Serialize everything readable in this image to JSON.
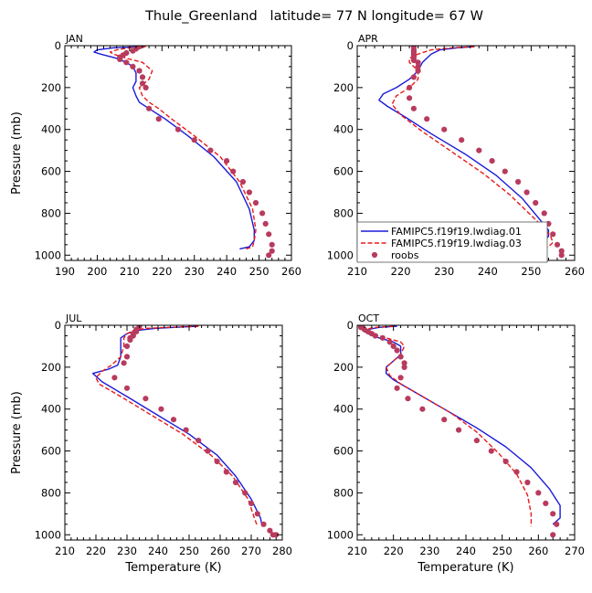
{
  "figure_title": "Thule_Greenland   latitude= 77 N longitude= 67 W",
  "colors": {
    "model1": "#1a1ad8",
    "model2": "#e81a1a",
    "obs": "#b83b5e"
  },
  "legend": {
    "entries": [
      "FAMIPC5.f19f19.lwdiag.01",
      "FAMIPC5.f19f19.lwdiag.03",
      "roobs"
    ],
    "placement": "APR panel, bottom"
  },
  "chart_data": [
    {
      "type": "line",
      "panel_label": "JAN",
      "xlabel": "",
      "ylabel": "Pressure (mb)",
      "xlim": [
        190,
        260
      ],
      "ylim": [
        1025,
        0
      ],
      "xticks": [
        190,
        200,
        210,
        220,
        230,
        240,
        250,
        260
      ],
      "xtick_labels": [
        "190",
        "200",
        "210",
        "220",
        "230",
        "240",
        "250",
        "260"
      ],
      "yticks": [
        0,
        200,
        400,
        600,
        800,
        1000
      ],
      "ytick_labels": [
        "0",
        "200",
        "400",
        "600",
        "800",
        "1000"
      ],
      "series": [
        {
          "name": "FAMIPC5.f19f19.lwdiag.01",
          "style": "solid",
          "x": [
            213,
            205,
            200,
            199,
            201,
            206,
            209,
            211,
            212,
            212,
            211,
            212,
            213,
            216,
            221,
            228,
            236,
            243,
            247,
            248.5,
            248.5,
            247,
            244
          ],
          "y": [
            5,
            10,
            20,
            30,
            40,
            60,
            80,
            100,
            130,
            170,
            200,
            240,
            270,
            300,
            350,
            430,
            530,
            650,
            780,
            880,
            930,
            960,
            970
          ]
        },
        {
          "name": "FAMIPC5.f19f19.lwdiag.03",
          "style": "dashed",
          "x": [
            215,
            210,
            206,
            204,
            205,
            209,
            214,
            217,
            216,
            213,
            214,
            216,
            219,
            223,
            230,
            238,
            244,
            248,
            249,
            248.5,
            248,
            246
          ],
          "y": [
            5,
            10,
            20,
            30,
            40,
            60,
            80,
            120,
            160,
            200,
            240,
            270,
            300,
            350,
            430,
            530,
            650,
            780,
            880,
            930,
            960,
            970
          ]
        },
        {
          "name": "roobs",
          "style": "markers",
          "x": [
            213,
            212,
            211,
            209,
            208,
            207,
            207,
            209,
            211,
            213,
            214,
            214,
            215,
            216,
            219,
            225,
            230,
            235,
            240,
            242,
            245,
            247,
            249,
            251,
            252,
            253,
            254,
            254,
            253
          ],
          "y": [
            5,
            15,
            25,
            35,
            45,
            55,
            65,
            80,
            100,
            120,
            150,
            180,
            200,
            300,
            350,
            400,
            450,
            500,
            550,
            600,
            650,
            700,
            750,
            800,
            850,
            900,
            950,
            980,
            1000
          ]
        }
      ]
    },
    {
      "type": "line",
      "panel_label": "APR",
      "xlabel": "",
      "ylabel": "",
      "xlim": [
        210,
        260
      ],
      "ylim": [
        1025,
        0
      ],
      "xticks": [
        210,
        220,
        230,
        240,
        250,
        260
      ],
      "xtick_labels": [
        "210",
        "220",
        "230",
        "240",
        "250",
        "260"
      ],
      "yticks": [
        0,
        200,
        400,
        600,
        800,
        1000
      ],
      "ytick_labels": [
        "0",
        "200",
        "400",
        "600",
        "800",
        "1000"
      ],
      "series": [
        {
          "name": "FAMIPC5.f19f19.lwdiag.01",
          "style": "solid",
          "x": [
            237,
            233,
            229,
            227,
            225,
            224,
            222,
            219,
            216,
            215,
            217,
            221,
            227,
            235,
            242,
            248,
            252,
            254,
            254,
            253,
            251,
            249
          ],
          "y": [
            5,
            10,
            20,
            40,
            80,
            120,
            160,
            200,
            230,
            260,
            290,
            340,
            420,
            520,
            620,
            730,
            830,
            880,
            910,
            930,
            950,
            960
          ]
        },
        {
          "name": "FAMIPC5.f19f19.lwdiag.03",
          "style": "dashed",
          "x": [
            237,
            232,
            227,
            224,
            222,
            222,
            224,
            224,
            222,
            219,
            218,
            220,
            225,
            232,
            239,
            245,
            250,
            253,
            254.5,
            255,
            254,
            252
          ],
          "y": [
            5,
            10,
            20,
            40,
            60,
            80,
            120,
            160,
            200,
            240,
            280,
            330,
            410,
            510,
            610,
            710,
            810,
            870,
            910,
            940,
            960,
            970
          ]
        },
        {
          "name": "roobs",
          "style": "markers",
          "x": [
            223,
            223,
            223,
            223,
            223,
            223,
            223,
            224,
            224,
            224,
            223,
            222,
            222,
            223,
            226,
            230,
            234,
            238,
            241,
            244,
            247,
            249,
            251,
            253,
            254,
            255,
            256,
            257,
            257
          ],
          "y": [
            5,
            20,
            30,
            40,
            50,
            60,
            70,
            80,
            100,
            120,
            150,
            200,
            250,
            300,
            350,
            400,
            450,
            500,
            550,
            600,
            650,
            700,
            750,
            800,
            850,
            900,
            950,
            980,
            1000
          ]
        }
      ]
    },
    {
      "type": "line",
      "panel_label": "JUL",
      "xlabel": "Temperature (K)",
      "ylabel": "Pressure (mb)",
      "xlim": [
        210,
        280
      ],
      "ylim": [
        1025,
        0
      ],
      "xticks": [
        210,
        220,
        230,
        240,
        250,
        260,
        270,
        280
      ],
      "xtick_labels": [
        "210",
        "220",
        "230",
        "240",
        "250",
        "260",
        "270",
        "280"
      ],
      "yticks": [
        0,
        200,
        400,
        600,
        800,
        1000
      ],
      "ytick_labels": [
        "0",
        "200",
        "400",
        "600",
        "800",
        "1000"
      ],
      "series": [
        {
          "name": "FAMIPC5.f19f19.lwdiag.01",
          "style": "solid",
          "x": [
            253,
            245,
            239,
            233,
            230,
            228,
            228,
            228,
            227,
            224,
            219,
            222,
            230,
            240,
            250,
            259,
            265,
            270,
            273,
            273.5
          ],
          "y": [
            5,
            10,
            15,
            25,
            40,
            60,
            100,
            150,
            190,
            210,
            230,
            270,
            340,
            430,
            520,
            620,
            720,
            830,
            920,
            960
          ]
        },
        {
          "name": "FAMIPC5.f19f19.lwdiag.03",
          "style": "dashed",
          "x": [
            253,
            243,
            236,
            232,
            230,
            229,
            229,
            228,
            225,
            222,
            220,
            221,
            228,
            238,
            248,
            257,
            264,
            269,
            271,
            272
          ],
          "y": [
            5,
            10,
            15,
            25,
            40,
            60,
            100,
            150,
            190,
            220,
            250,
            280,
            340,
            430,
            520,
            620,
            720,
            830,
            920,
            960
          ]
        },
        {
          "name": "roobs",
          "style": "markers",
          "x": [
            234,
            233,
            233,
            232,
            232,
            231,
            231,
            230,
            230,
            229,
            226,
            230,
            236,
            241,
            245,
            249,
            253,
            256,
            259,
            262,
            265,
            268,
            270,
            272,
            274,
            276,
            277,
            278
          ],
          "y": [
            5,
            20,
            30,
            40,
            50,
            60,
            70,
            100,
            150,
            180,
            250,
            300,
            350,
            400,
            450,
            500,
            550,
            600,
            650,
            700,
            750,
            800,
            850,
            900,
            950,
            980,
            1000,
            1000
          ]
        }
      ]
    },
    {
      "type": "line",
      "panel_label": "OCT",
      "xlabel": "Temperature (K)",
      "ylabel": "",
      "xlim": [
        210,
        270
      ],
      "ylim": [
        1025,
        0
      ],
      "xticks": [
        210,
        220,
        230,
        240,
        250,
        260,
        270
      ],
      "xtick_labels": [
        "210",
        "220",
        "230",
        "240",
        "250",
        "260",
        "270"
      ],
      "yticks": [
        0,
        200,
        400,
        600,
        800,
        1000
      ],
      "ytick_labels": [
        "0",
        "200",
        "400",
        "600",
        "800",
        "1000"
      ],
      "series": [
        {
          "name": "FAMIPC5.f19f19.lwdiag.01",
          "style": "solid",
          "x": [
            221,
            216,
            213,
            212,
            213,
            216,
            220,
            222,
            222,
            220,
            218,
            218,
            220,
            226,
            234,
            243,
            251,
            258,
            263,
            266,
            266,
            264
          ],
          "y": [
            5,
            10,
            20,
            30,
            40,
            60,
            80,
            100,
            140,
            170,
            200,
            230,
            260,
            320,
            400,
            490,
            580,
            680,
            780,
            860,
            920,
            950
          ]
        },
        {
          "name": "FAMIPC5.f19f19.lwdiag.03",
          "style": "dashed",
          "x": [
            220,
            215,
            212,
            212,
            214,
            218,
            222,
            223,
            222,
            220,
            218,
            219,
            222,
            228,
            236,
            243,
            249,
            254,
            257,
            258,
            258
          ],
          "y": [
            5,
            10,
            20,
            30,
            40,
            60,
            80,
            100,
            140,
            170,
            200,
            240,
            280,
            340,
            420,
            510,
            610,
            710,
            810,
            900,
            960
          ]
        },
        {
          "name": "roobs",
          "style": "markers",
          "x": [
            211,
            211,
            212,
            213,
            214,
            215,
            217,
            219,
            220,
            221,
            222,
            223,
            223,
            222,
            221,
            224,
            228,
            234,
            238,
            243,
            247,
            251,
            254,
            257,
            260,
            262,
            264,
            265,
            264
          ],
          "y": [
            5,
            10,
            20,
            30,
            40,
            50,
            60,
            80,
            100,
            120,
            150,
            180,
            200,
            250,
            300,
            350,
            400,
            450,
            500,
            550,
            600,
            650,
            700,
            750,
            800,
            850,
            900,
            950,
            1000
          ]
        }
      ]
    }
  ]
}
